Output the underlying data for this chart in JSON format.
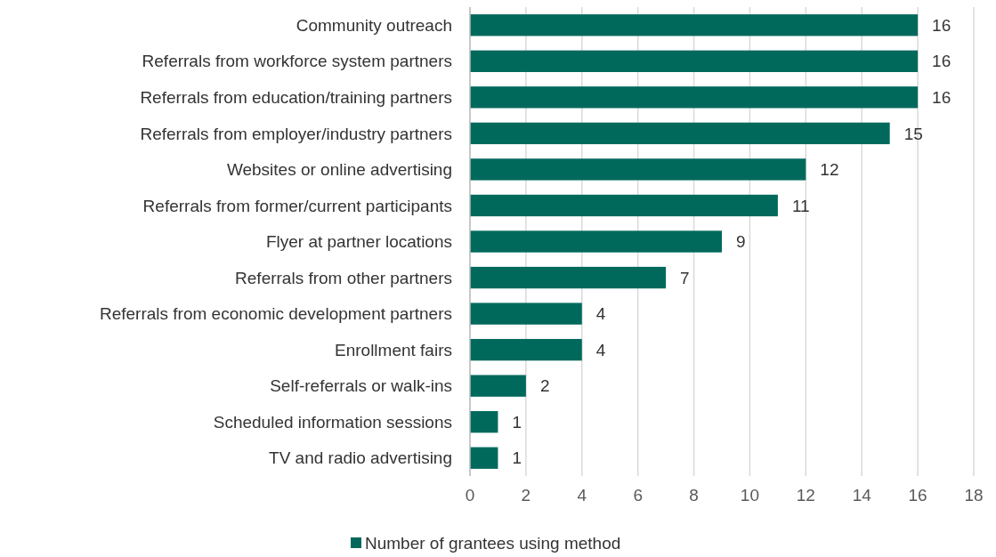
{
  "chart_data": {
    "type": "bar",
    "orientation": "horizontal",
    "categories": [
      "Community outreach",
      "Referrals from workforce system partners",
      "Referrals from education/training partners",
      "Referrals from employer/industry partners",
      "Websites or online advertising",
      "Referrals from former/current participants",
      "Flyer at partner locations",
      "Referrals from other partners",
      "Referrals from economic development partners",
      "Enrollment fairs",
      "Self-referrals or walk-ins",
      "Scheduled information sessions",
      "TV and radio advertising"
    ],
    "series": [
      {
        "name": "Number of grantees using method",
        "color": "#00695c",
        "values": [
          16,
          16,
          16,
          15,
          12,
          11,
          9,
          7,
          4,
          4,
          2,
          1,
          1
        ]
      }
    ],
    "xlim": [
      0,
      18
    ],
    "xticks": [
      0,
      2,
      4,
      6,
      8,
      10,
      12,
      14,
      16,
      18
    ],
    "grid": "x",
    "data_labels": true,
    "legend": "bottom"
  }
}
